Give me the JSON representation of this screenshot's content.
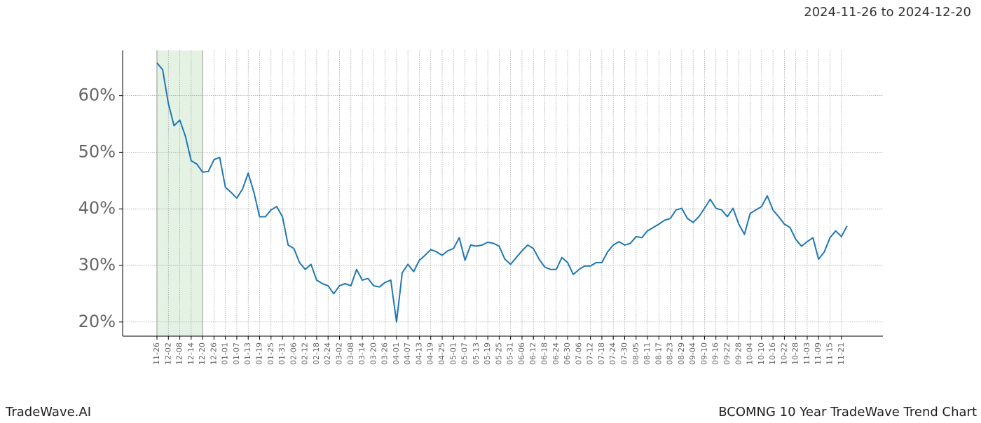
{
  "chart_data": {
    "type": "line",
    "title": "2024-11-26 to 2024-12-20",
    "brand": "TradeWave.AI",
    "subtitle": "BCOMNG 10 Year TradeWave Trend Chart",
    "highlight": {
      "start": "11-26",
      "end": "12-20",
      "color": "#d9ecd9"
    },
    "color": "#1f77b4",
    "grid": true,
    "ylim": [
      17.5,
      68
    ],
    "yticks": [
      {
        "value": 20,
        "label": "20%"
      },
      {
        "value": 30,
        "label": "30%"
      },
      {
        "value": 40,
        "label": "40%"
      },
      {
        "value": 50,
        "label": "50%"
      },
      {
        "value": 60,
        "label": "60%"
      }
    ],
    "categories": [
      "11-26",
      null,
      "12-02",
      null,
      "12-08",
      null,
      "12-14",
      null,
      "12-20",
      null,
      "12-26",
      null,
      "01-01",
      null,
      "01-07",
      null,
      "01-13",
      null,
      "01-19",
      null,
      "01-25",
      null,
      "01-31",
      null,
      "02-06",
      null,
      "02-12",
      null,
      "02-18",
      null,
      "02-24",
      null,
      "03-02",
      null,
      "03-08",
      null,
      "03-14",
      null,
      "03-20",
      null,
      "03-26",
      null,
      "04-01",
      null,
      "04-07",
      null,
      "04-13",
      null,
      "04-19",
      null,
      "04-25",
      null,
      "05-01",
      null,
      "05-07",
      null,
      "05-13",
      null,
      "05-19",
      null,
      "05-25",
      null,
      "05-31",
      null,
      "06-06",
      null,
      "06-12",
      null,
      "06-18",
      null,
      "06-24",
      null,
      "06-30",
      null,
      "07-06",
      null,
      "07-12",
      null,
      "07-18",
      null,
      "07-24",
      null,
      "07-30",
      null,
      "08-05",
      null,
      "08-11",
      null,
      "08-17",
      null,
      "08-23",
      null,
      "08-29",
      null,
      "09-04",
      null,
      "09-10",
      null,
      "09-16",
      null,
      "09-22",
      null,
      "09-28",
      null,
      "10-04",
      null,
      "10-10",
      null,
      "10-16",
      null,
      "10-22",
      null,
      "10-28",
      null,
      "11-03",
      null,
      "11-09",
      null,
      "11-15",
      null,
      "11-21",
      null
    ],
    "values": [
      65.8,
      64.6,
      58.6,
      54.7,
      55.7,
      52.8,
      48.5,
      47.9,
      46.5,
      46.6,
      48.7,
      49.1,
      43.8,
      42.9,
      41.9,
      43.5,
      46.3,
      42.9,
      38.6,
      38.6,
      39.8,
      40.4,
      38.6,
      33.6,
      33.0,
      30.5,
      29.3,
      30.2,
      27.4,
      26.8,
      26.4,
      25.0,
      26.4,
      26.8,
      26.4,
      29.3,
      27.4,
      27.7,
      26.4,
      26.2,
      27.0,
      27.4,
      20.0,
      28.7,
      30.2,
      28.9,
      30.9,
      31.8,
      32.8,
      32.4,
      31.8,
      32.6,
      33.0,
      34.9,
      30.9,
      33.6,
      33.4,
      33.6,
      34.1,
      33.9,
      33.4,
      31.1,
      30.2,
      31.4,
      32.6,
      33.6,
      33.0,
      31.1,
      29.7,
      29.3,
      29.3,
      31.4,
      30.5,
      28.4,
      29.3,
      29.9,
      29.9,
      30.5,
      30.5,
      32.4,
      33.6,
      34.2,
      33.6,
      33.9,
      35.1,
      34.9,
      36.1,
      36.7,
      37.3,
      38.0,
      38.3,
      39.8,
      40.1,
      38.3,
      37.6,
      38.6,
      40.1,
      41.7,
      40.1,
      39.8,
      38.6,
      40.1,
      37.3,
      35.5,
      39.2,
      39.8,
      40.4,
      42.3,
      39.8,
      38.6,
      37.3,
      36.7,
      34.6,
      33.4,
      34.2,
      34.9,
      31.1,
      32.4,
      34.9,
      36.1,
      35.1,
      37.0
    ]
  }
}
